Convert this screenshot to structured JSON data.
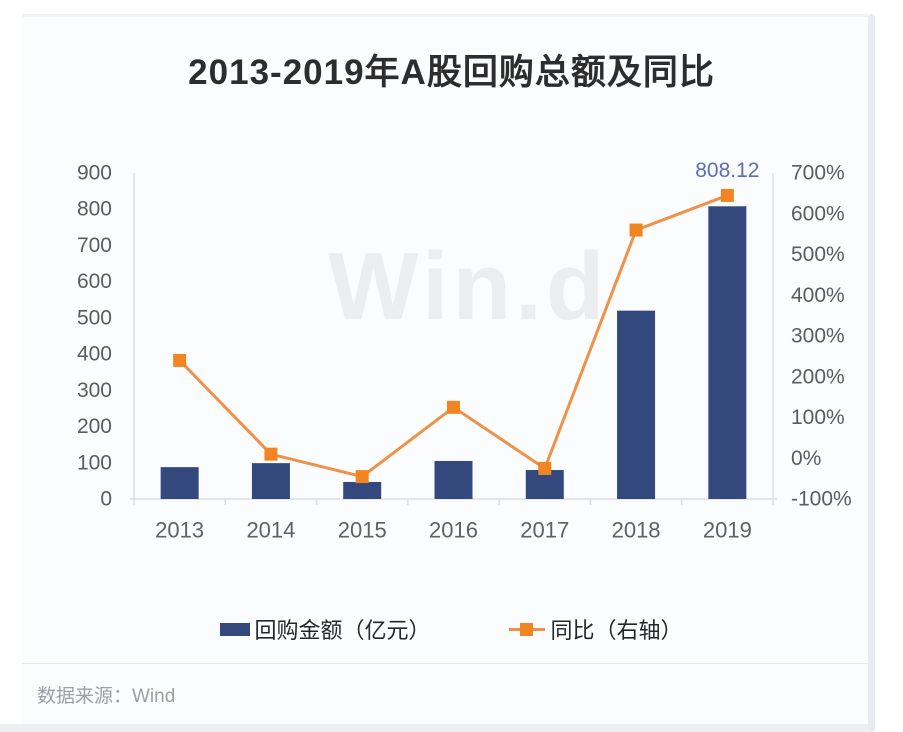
{
  "title": "2013-2019年A股回购总额及同比",
  "watermark": "Win.d",
  "source": "数据来源：Wind",
  "colors": {
    "bar": "#33497e",
    "line": "#f0914a",
    "marker": "#f28422",
    "annotation": "#5f6cb2",
    "axis_line": "#dcdee0",
    "watermark": "#ecedef"
  },
  "legend": {
    "items": [
      {
        "label": "回购金额（亿元）",
        "marker": "bar-swatch"
      },
      {
        "label": "同比（右轴）",
        "marker": "line-swatch"
      }
    ]
  },
  "chart_data": {
    "type": "bar+line combo",
    "title": "2013-2019年A股回购总额及同比",
    "categories": [
      "2013",
      "2014",
      "2015",
      "2016",
      "2017",
      "2018",
      "2019"
    ],
    "series": [
      {
        "name": "回购金额（亿元）",
        "type": "bar",
        "axis": "left",
        "values": [
          88,
          99,
          47,
          105,
          80,
          520,
          808.12
        ]
      },
      {
        "name": "同比（右轴）",
        "type": "line",
        "axis": "right",
        "unit": "%",
        "values": [
          240,
          10,
          -45,
          125,
          -25,
          560,
          645
        ]
      }
    ],
    "left_axis": {
      "min": 0,
      "max": 900,
      "step": 100,
      "tick_labels": [
        "0",
        "100",
        "200",
        "300",
        "400",
        "500",
        "600",
        "700",
        "800",
        "900"
      ]
    },
    "right_axis": {
      "min": -100,
      "max": 700,
      "step": 100,
      "tick_labels": [
        "-100%",
        "0%",
        "100%",
        "200%",
        "300%",
        "400%",
        "500%",
        "600%",
        "700%"
      ]
    },
    "annotation": {
      "text": "808.12",
      "category": "2019"
    },
    "grid": false,
    "legend_position": "bottom"
  }
}
